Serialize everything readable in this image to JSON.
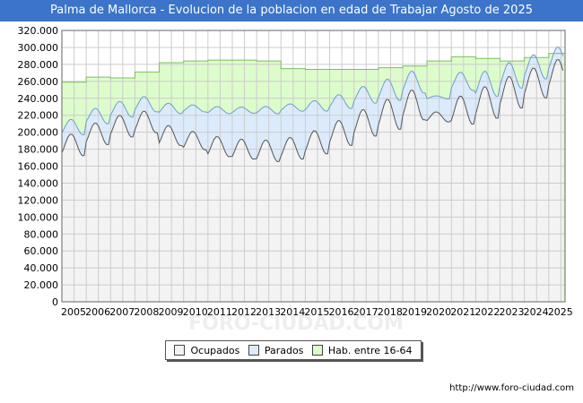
{
  "header": {
    "title": "Palma de Mallorca - Evolucion de la poblacion en edad de Trabajar Agosto de 2025"
  },
  "footer": {
    "source": "http://www.foro-ciudad.com"
  },
  "watermark": "FORO-CIUDAD.COM",
  "colors": {
    "title_bg": "#3b74c8",
    "hab_fill": "#ddfccb",
    "parados_fill": "#dcebfc",
    "ocupados_fill": "#f3f3f3",
    "hab_line": "#7fbf5e",
    "parados_line": "#6b9fd1",
    "ocupados_line": "#555555"
  },
  "chart_data": {
    "type": "area",
    "title": "",
    "xlabel": "",
    "ylabel": "",
    "xlim": [
      2005,
      2025.67
    ],
    "ylim": [
      0,
      320000
    ],
    "grid": true,
    "x_ticks": [
      "2005",
      "2006",
      "2007",
      "2008",
      "2009",
      "2010",
      "2011",
      "2012",
      "2013",
      "2014",
      "2015",
      "2016",
      "2017",
      "2018",
      "2019",
      "2020",
      "2021",
      "2022",
      "2023",
      "2024",
      "2025"
    ],
    "y_ticks": [
      "0",
      "20.000",
      "40.000",
      "60.000",
      "80.000",
      "100.000",
      "120.000",
      "140.000",
      "160.000",
      "180.000",
      "200.000",
      "220.000",
      "240.000",
      "260.000",
      "280.000",
      "300.000",
      "320.000"
    ],
    "y_tick_values": [
      0,
      20000,
      40000,
      60000,
      80000,
      100000,
      120000,
      140000,
      160000,
      180000,
      200000,
      220000,
      240000,
      260000,
      280000,
      300000,
      320000
    ],
    "legend": {
      "position": "bottom",
      "items": [
        {
          "label": "Ocupados",
          "color": "#f3f3f3"
        },
        {
          "label": "Parados",
          "color": "#dcebfc"
        },
        {
          "label": "Hab. entre 16-64",
          "color": "#ddfccb"
        }
      ]
    },
    "hab_16_64": [
      259000,
      265000,
      264000,
      271000,
      282000,
      284000,
      285000,
      285000,
      284000,
      275000,
      274000,
      274000,
      274000,
      276000,
      278000,
      284000,
      289000,
      287000,
      284000,
      288000,
      293000
    ],
    "ocupados_base": [
      185000,
      198000,
      207000,
      212000,
      196000,
      190000,
      183000,
      180000,
      178000,
      181000,
      188000,
      199000,
      211000,
      221000,
      232000,
      218000,
      226000,
      235000,
      247000,
      258000,
      268000
    ],
    "ocupados_amplitude": [
      13000,
      13000,
      13000,
      13000,
      12000,
      11000,
      12000,
      12000,
      13000,
      13000,
      14000,
      15000,
      16000,
      18000,
      18000,
      6000,
      17000,
      19000,
      19000,
      18000,
      18000
    ],
    "parados_base": [
      21000,
      21000,
      20000,
      21000,
      32000,
      38000,
      43000,
      46000,
      48000,
      48000,
      43000,
      37000,
      33000,
      29000,
      27000,
      23000,
      34000,
      22000,
      20000,
      19000,
      18000
    ]
  }
}
